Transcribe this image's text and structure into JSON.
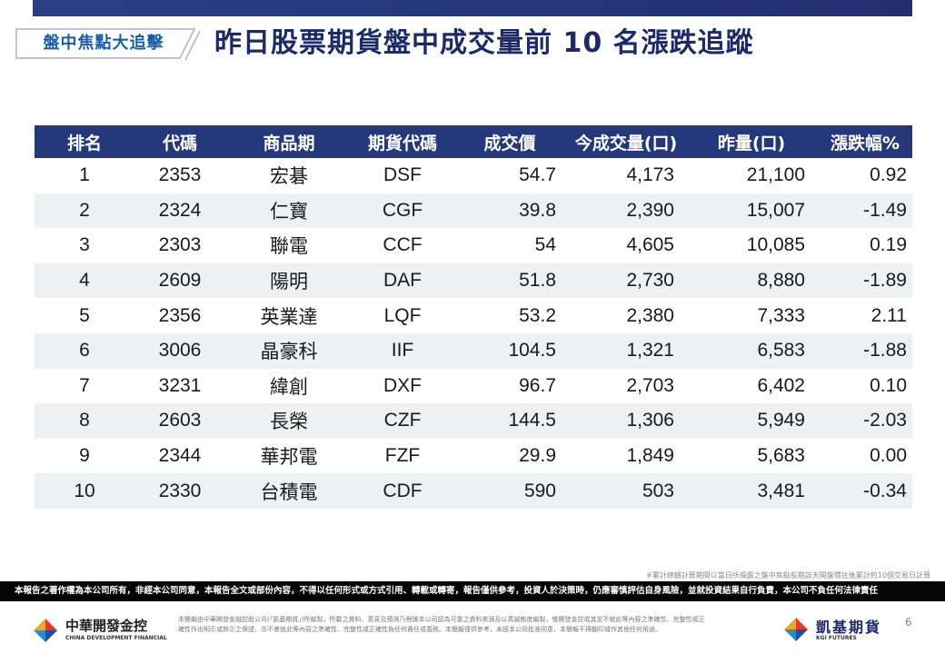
{
  "header": {
    "tag": "盤中焦點大追擊",
    "title": "昨日股票期貨盤中成交量前 10 名漲跌追蹤"
  },
  "table": {
    "columns": [
      "排名",
      "代碼",
      "商品期",
      "期貨代碼",
      "成交價",
      "今成交量(口)",
      "昨量(口)",
      "漲跌幅%"
    ],
    "rows": [
      {
        "rank": "1",
        "code": "2353",
        "name": "宏碁",
        "fut": "DSF",
        "price": "54.7",
        "vol": "4,173",
        "yvol": "21,100",
        "chg": "0.92"
      },
      {
        "rank": "2",
        "code": "2324",
        "name": "仁寶",
        "fut": "CGF",
        "price": "39.8",
        "vol": "2,390",
        "yvol": "15,007",
        "chg": "-1.49"
      },
      {
        "rank": "3",
        "code": "2303",
        "name": "聯電",
        "fut": "CCF",
        "price": "54",
        "vol": "4,605",
        "yvol": "10,085",
        "chg": "0.19"
      },
      {
        "rank": "4",
        "code": "2609",
        "name": "陽明",
        "fut": "DAF",
        "price": "51.8",
        "vol": "2,730",
        "yvol": "8,880",
        "chg": "-1.89"
      },
      {
        "rank": "5",
        "code": "2356",
        "name": "英業達",
        "fut": "LQF",
        "price": "53.2",
        "vol": "2,380",
        "yvol": "7,333",
        "chg": "2.11"
      },
      {
        "rank": "6",
        "code": "3006",
        "name": "晶豪科",
        "fut": "IIF",
        "price": "104.5",
        "vol": "1,321",
        "yvol": "6,583",
        "chg": "-1.88"
      },
      {
        "rank": "7",
        "code": "3231",
        "name": "緯創",
        "fut": "DXF",
        "price": "96.7",
        "vol": "2,703",
        "yvol": "6,402",
        "chg": "0.10"
      },
      {
        "rank": "8",
        "code": "2603",
        "name": "長榮",
        "fut": "CZF",
        "price": "144.5",
        "vol": "1,306",
        "yvol": "5,949",
        "chg": "-2.03"
      },
      {
        "rank": "9",
        "code": "2344",
        "name": "華邦電",
        "fut": "FZF",
        "price": "29.9",
        "vol": "1,849",
        "yvol": "5,683",
        "chg": "0.00"
      },
      {
        "rank": "10",
        "code": "2330",
        "name": "台積電",
        "fut": "CDF",
        "price": "590",
        "vol": "503",
        "yvol": "3,481",
        "chg": "-0.34"
      }
    ]
  },
  "note": "※累計總額計算期間以當日所揭露之盤中焦點股期該天開盤價往後累計約10個交易日計算",
  "disclaimer": "本報告之著作權為本公司所有，非經本公司同意，本報告全文或部份內容，不得以任何形式或方式引用、轉載或轉寄，報告僅供參考，投資人於決策時，仍應審慎評估自身風險，並就投資結果自行負責，本公司不負任何法律責任",
  "footer": {
    "left_logo_cn": "中華開發金控",
    "left_logo_en": "CHINA DEVELOPMENT FINANCIAL",
    "text": "本簡報由中華開發金融控股公司(「凱基期貨」)所編製，所載之資料、意見及預測乃根據本公司認為可靠之資料來源及以真誠態度編製，惟開發金控或其並不就此等內容之準確性、完整性或正確性作出明示或默示之保證，亦不會就此等內容之準確性、完整性或正確性負任何責任或義務。本簡報僅供參考，未經本公司批准同意，本簡報不得翻印或作其他任何用途。",
    "right_logo_cn": "凱基期貨",
    "right_logo_en": "KGI FUTURES",
    "page": "6"
  },
  "colors": {
    "header_bar": "#253879",
    "title": "#1c2a6a",
    "tag_text": "#1a5fa8",
    "row_alt": "#eef0f3"
  }
}
